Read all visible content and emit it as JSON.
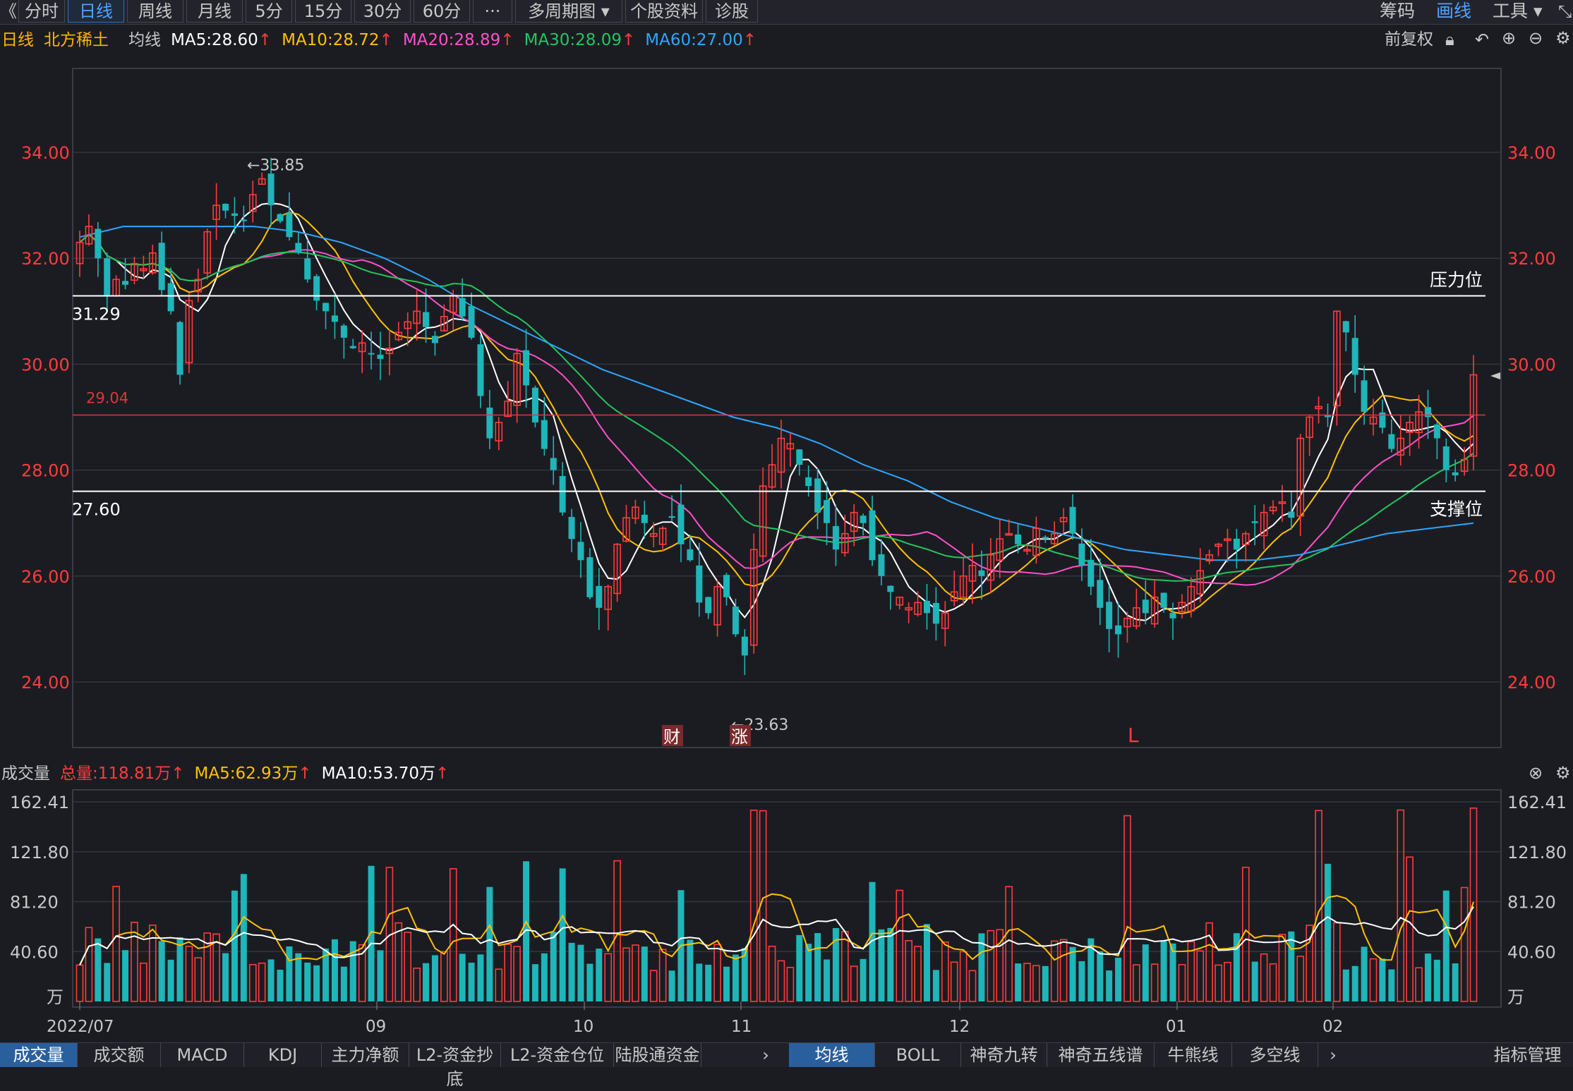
{
  "topbar": {
    "back": "《",
    "tabs": [
      "分时",
      "日线",
      "周线",
      "月线",
      "5分",
      "15分",
      "30分",
      "60分",
      "···",
      "多周期图 ▾",
      "个股资料",
      "诊股"
    ],
    "active_tab": 1,
    "right": [
      "筹码",
      "画线",
      "工具 ▾"
    ],
    "right_active": 1
  },
  "info": {
    "period": "日线",
    "stock": "北方稀土",
    "label": "均线",
    "ma5": "MA5:28.60",
    "ma10": "MA10:28.72",
    "ma20": "MA20:28.89",
    "ma30": "MA30:28.09",
    "ma60": "MA60:27.00",
    "fq": "前复权"
  },
  "colors": {
    "up": "#ff3b3b",
    "down": "#1fb5b9",
    "ma5": "#ffffff",
    "ma10": "#ffc000",
    "ma20": "#ff4fc8",
    "ma30": "#22c55e",
    "ma60": "#2aa7ff"
  },
  "price_axis": [
    "34.00",
    "32.00",
    "30.00",
    "28.00",
    "26.00",
    "24.00"
  ],
  "lines": {
    "resistance": {
      "value": 31.29,
      "label": "31.29",
      "name": "压力位"
    },
    "support": {
      "value": 27.6,
      "label": "27.60",
      "name": "支撑位"
    },
    "red_line": {
      "value": 29.04,
      "label": "29.04"
    }
  },
  "annotations": {
    "high": "←33.85",
    "low": "←23.63",
    "badge1": "财",
    "badge2": "涨",
    "l_mark": "L"
  },
  "volume": {
    "title": "成交量",
    "total": "总量:118.81万",
    "ma5": "MA5:62.93万",
    "ma10": "MA10:53.70万",
    "axis": [
      "162.41",
      "121.80",
      "81.20",
      "40.60",
      "万"
    ]
  },
  "dates": [
    "2022/07",
    "09",
    "10",
    "11",
    "12",
    "01",
    "02"
  ],
  "bottom_tabs": [
    "成交量",
    "成交额",
    "MACD",
    "KDJ",
    "主力净额",
    "L2-资金抄底",
    "L2-资金仓位",
    "陆股通资金"
  ],
  "bottom_tabs2": [
    "均线",
    "BOLL",
    "神奇九转",
    "神奇五线谱",
    "牛熊线",
    "多空线"
  ],
  "bottom_right": "指标管理",
  "chart_data": {
    "type": "candlestick",
    "ylim": [
      23.0,
      35.5
    ],
    "high": 33.85,
    "low": 23.63,
    "close_path": [
      32.3,
      32.6,
      32.0,
      31.3,
      31.6,
      31.5,
      31.9,
      31.8,
      32.1,
      31.4,
      31.0,
      29.8,
      31.2,
      31.6,
      32.5,
      33.0,
      32.9,
      32.8,
      32.7,
      33.2,
      33.5,
      33.0,
      32.7,
      32.4,
      32.1,
      31.6,
      31.2,
      31.0,
      30.8,
      30.5,
      30.3,
      30.4,
      30.2,
      30.1,
      30.3,
      30.6,
      30.8,
      31.0,
      30.7,
      30.4,
      30.9,
      31.3,
      30.9,
      30.5,
      29.4,
      28.6,
      28.9,
      29.3,
      30.2,
      29.6,
      28.9,
      28.4,
      28.0,
      27.2,
      26.7,
      26.3,
      25.6,
      25.4,
      25.8,
      26.6,
      27.1,
      27.3,
      27.0,
      26.8,
      26.9,
      27.1,
      26.6,
      26.3,
      25.5,
      25.3,
      25.8,
      25.6,
      24.9,
      24.5,
      26.5,
      27.7,
      28.1,
      28.6,
      28.5,
      28.1,
      27.7,
      27.2,
      27.0,
      26.5,
      26.8,
      27.2,
      27.0,
      26.3,
      26.0,
      25.7,
      25.6,
      25.4,
      25.5,
      25.3,
      25.1,
      25.3,
      25.7,
      26.0,
      26.2,
      26.0,
      26.4,
      26.7,
      26.8,
      26.6,
      26.5,
      26.9,
      26.7,
      26.8,
      27.1,
      26.8,
      26.2,
      25.8,
      25.4,
      25.0,
      24.9,
      25.2,
      25.4,
      25.3,
      25.6,
      25.4,
      25.2,
      25.5,
      25.8,
      26.1,
      26.4,
      26.6,
      26.7,
      26.5,
      26.8,
      27.0,
      27.2,
      27.3,
      27.4,
      27.1,
      28.6,
      29.0,
      29.2,
      29.0,
      31.0,
      30.6,
      29.8,
      29.1,
      29.0,
      28.8,
      28.4,
      28.6,
      28.9,
      29.1,
      29.0,
      28.6,
      28.0,
      27.9,
      28.2,
      29.8
    ],
    "ma60_path": [
      32.4,
      32.6,
      32.6,
      32.6,
      32.6,
      32.5,
      32.3,
      32.0,
      31.6,
      31.1,
      30.7,
      30.3,
      29.9,
      29.6,
      29.3,
      29.0,
      28.8,
      28.5,
      28.1,
      27.8,
      27.4,
      27.1,
      26.9,
      26.7,
      26.5,
      26.4,
      26.3,
      26.3,
      26.4,
      26.6,
      26.8,
      26.9,
      27.0
    ],
    "volume_ylim": [
      0,
      162.41
    ]
  }
}
